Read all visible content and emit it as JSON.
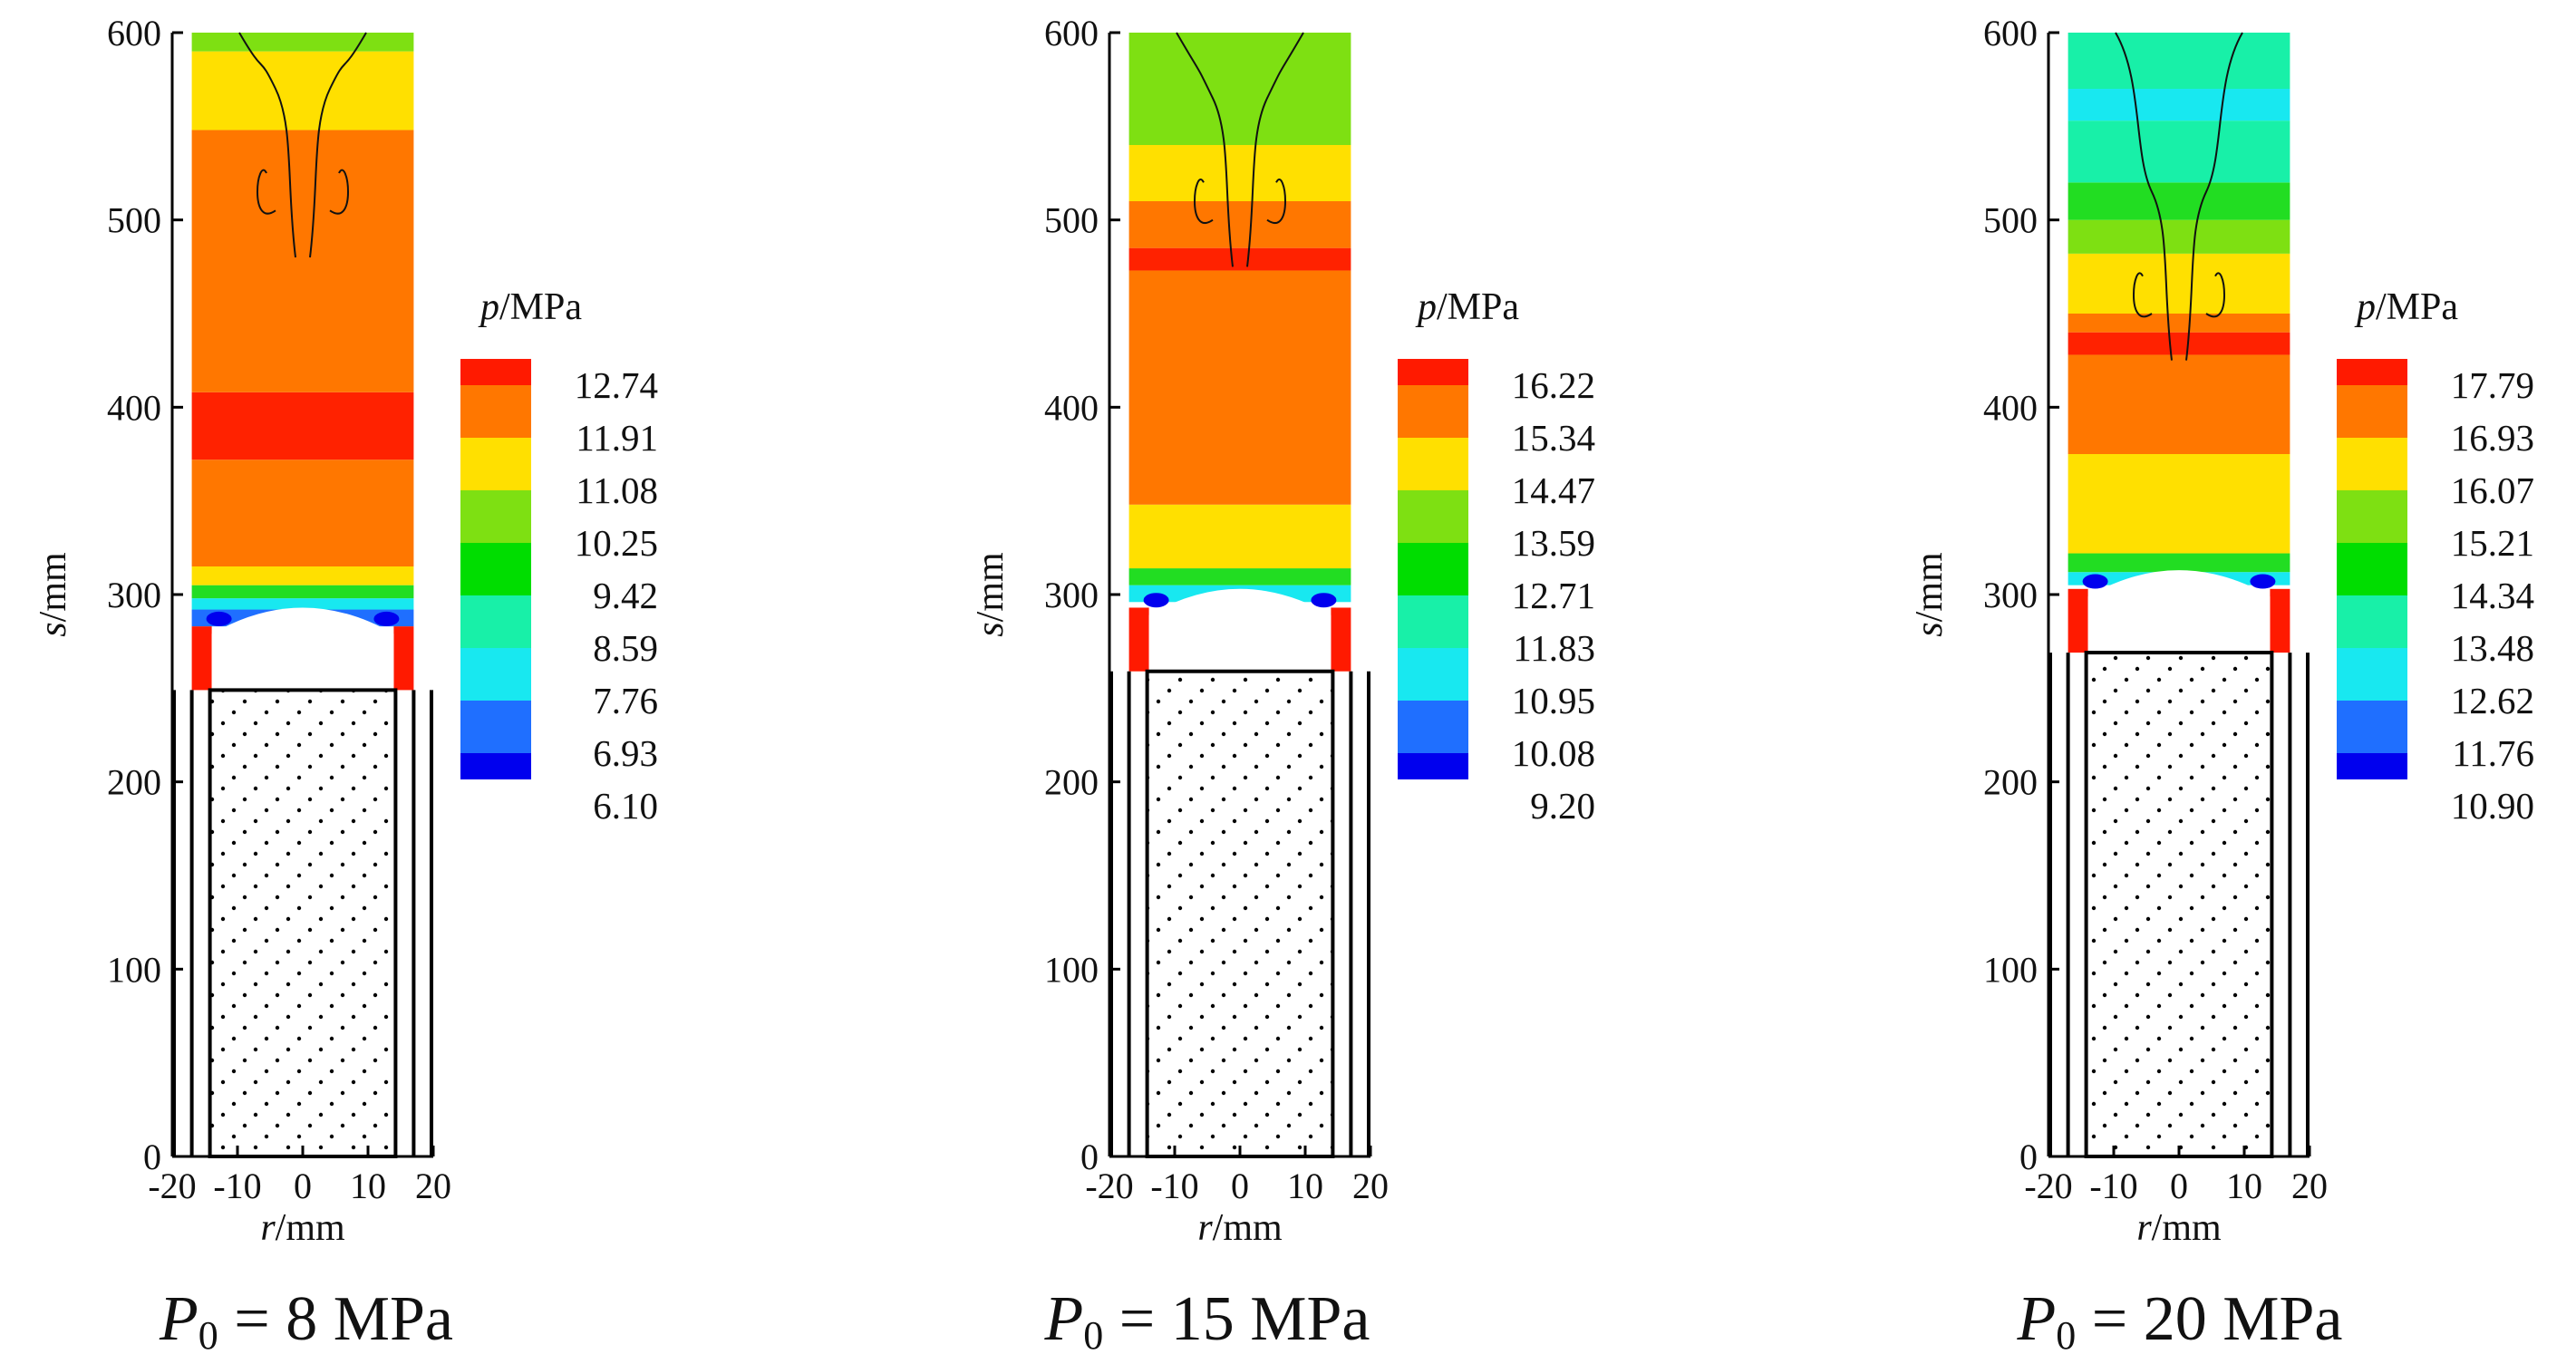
{
  "figure": {
    "panels": [
      {
        "caption": {
          "P": "P",
          "sub": "0",
          "rest": " = 8 MPa"
        },
        "legend": {
          "title_italic": "p",
          "title_unit": "/MPa"
        },
        "zones": [
          [
            0,
            249,
            "#ffffff"
          ],
          [
            249,
            265,
            "#ffffff"
          ],
          [
            265,
            283,
            "#ffffff"
          ],
          [
            283,
            292,
            "#1f6fff"
          ],
          [
            292,
            298,
            "#18e8f0"
          ],
          [
            298,
            305,
            "#22dd22"
          ],
          [
            305,
            315,
            "#ffe000"
          ],
          [
            315,
            372,
            "#ff7700"
          ],
          [
            372,
            408,
            "#ff2200"
          ],
          [
            408,
            548,
            "#ff7700"
          ],
          [
            548,
            590,
            "#ffe000"
          ],
          [
            590,
            600,
            "#7ee012"
          ]
        ],
        "chart_data": {
          "type": "contour",
          "title": "P0 = 8 MPa",
          "xlabel": "r/mm",
          "ylabel": "s/mm",
          "xlim": [
            -20,
            20
          ],
          "ylim": [
            0,
            600
          ],
          "x_ticks": [
            -20,
            -10,
            0,
            10,
            20
          ],
          "y_ticks": [
            0,
            100,
            200,
            300,
            400,
            500,
            600
          ],
          "colorbar_label": "p/MPa",
          "colorbar_levels": [
            12.74,
            11.91,
            11.08,
            10.25,
            9.42,
            8.59,
            7.76,
            6.93,
            6.1
          ],
          "colorbar_labels": [
            "12.74",
            "11.91",
            "11.08",
            "10.25",
            "9.42",
            "8.59",
            "7.76",
            "6.93",
            "6.10"
          ],
          "projectile_top_s": 249,
          "barrel_inner_r": 17
        }
      },
      {
        "caption": {
          "P": "P",
          "sub": "0",
          "rest": " = 15 MPa"
        },
        "legend": {
          "title_italic": "p",
          "title_unit": "/MPa"
        },
        "zones": [
          [
            0,
            259,
            "#ffffff"
          ],
          [
            259,
            280,
            "#ffffff"
          ],
          [
            280,
            296,
            "#ffffff"
          ],
          [
            296,
            305,
            "#18e8f0"
          ],
          [
            305,
            314,
            "#22dd22"
          ],
          [
            314,
            348,
            "#ffe000"
          ],
          [
            348,
            473,
            "#ff7700"
          ],
          [
            473,
            485,
            "#ff2200"
          ],
          [
            485,
            510,
            "#ff7700"
          ],
          [
            510,
            540,
            "#ffe000"
          ],
          [
            540,
            600,
            "#7ee012"
          ]
        ],
        "chart_data": {
          "type": "contour",
          "title": "P0 = 15 MPa",
          "xlabel": "r/mm",
          "ylabel": "s/mm",
          "xlim": [
            -20,
            20
          ],
          "ylim": [
            0,
            600
          ],
          "x_ticks": [
            -20,
            -10,
            0,
            10,
            20
          ],
          "y_ticks": [
            0,
            100,
            200,
            300,
            400,
            500,
            600
          ],
          "colorbar_label": "p/MPa",
          "colorbar_levels": [
            16.22,
            15.34,
            14.47,
            13.59,
            12.71,
            11.83,
            10.95,
            10.08,
            9.2
          ],
          "colorbar_labels": [
            "16.22",
            "15.34",
            "14.47",
            "13.59",
            "12.71",
            "11.83",
            "10.95",
            "10.08",
            "9.20"
          ],
          "projectile_top_s": 259,
          "barrel_inner_r": 17
        }
      },
      {
        "caption": {
          "P": "P",
          "sub": "0",
          "rest": " = 20 MPa"
        },
        "legend": {
          "title_italic": "p",
          "title_unit": "/MPa"
        },
        "zones": [
          [
            0,
            269,
            "#ffffff"
          ],
          [
            269,
            290,
            "#ffffff"
          ],
          [
            290,
            305,
            "#ffffff"
          ],
          [
            305,
            312,
            "#18e8f0"
          ],
          [
            312,
            322,
            "#22dd22"
          ],
          [
            322,
            375,
            "#ffe000"
          ],
          [
            375,
            428,
            "#ff7700"
          ],
          [
            428,
            440,
            "#ff2200"
          ],
          [
            440,
            450,
            "#ff7700"
          ],
          [
            450,
            482,
            "#ffe000"
          ],
          [
            482,
            500,
            "#7ee012"
          ],
          [
            500,
            520,
            "#22dd22"
          ],
          [
            520,
            553,
            "#18f0a8"
          ],
          [
            553,
            570,
            "#18e8f0"
          ],
          [
            570,
            600,
            "#18f0a8"
          ]
        ],
        "chart_data": {
          "type": "contour",
          "title": "P0 = 20 MPa",
          "xlabel": "r/mm",
          "ylabel": "s/mm",
          "xlim": [
            -20,
            20
          ],
          "ylim": [
            0,
            600
          ],
          "x_ticks": [
            -20,
            -10,
            0,
            10,
            20
          ],
          "y_ticks": [
            0,
            100,
            200,
            300,
            400,
            500,
            600
          ],
          "colorbar_label": "p/MPa",
          "colorbar_levels": [
            17.79,
            16.93,
            16.07,
            15.21,
            14.34,
            13.48,
            12.62,
            11.76,
            10.9
          ],
          "colorbar_labels": [
            "17.79",
            "16.93",
            "16.07",
            "15.21",
            "14.34",
            "13.48",
            "12.62",
            "11.76",
            "10.90"
          ],
          "projectile_top_s": 269,
          "barrel_inner_r": 17
        }
      }
    ],
    "colorbar_colors": [
      "#ff1a00",
      "#ff7700",
      "#ffe000",
      "#7ee012",
      "#00dd00",
      "#18f0a8",
      "#18e8f0",
      "#1f6fff",
      "#0000ee"
    ]
  }
}
